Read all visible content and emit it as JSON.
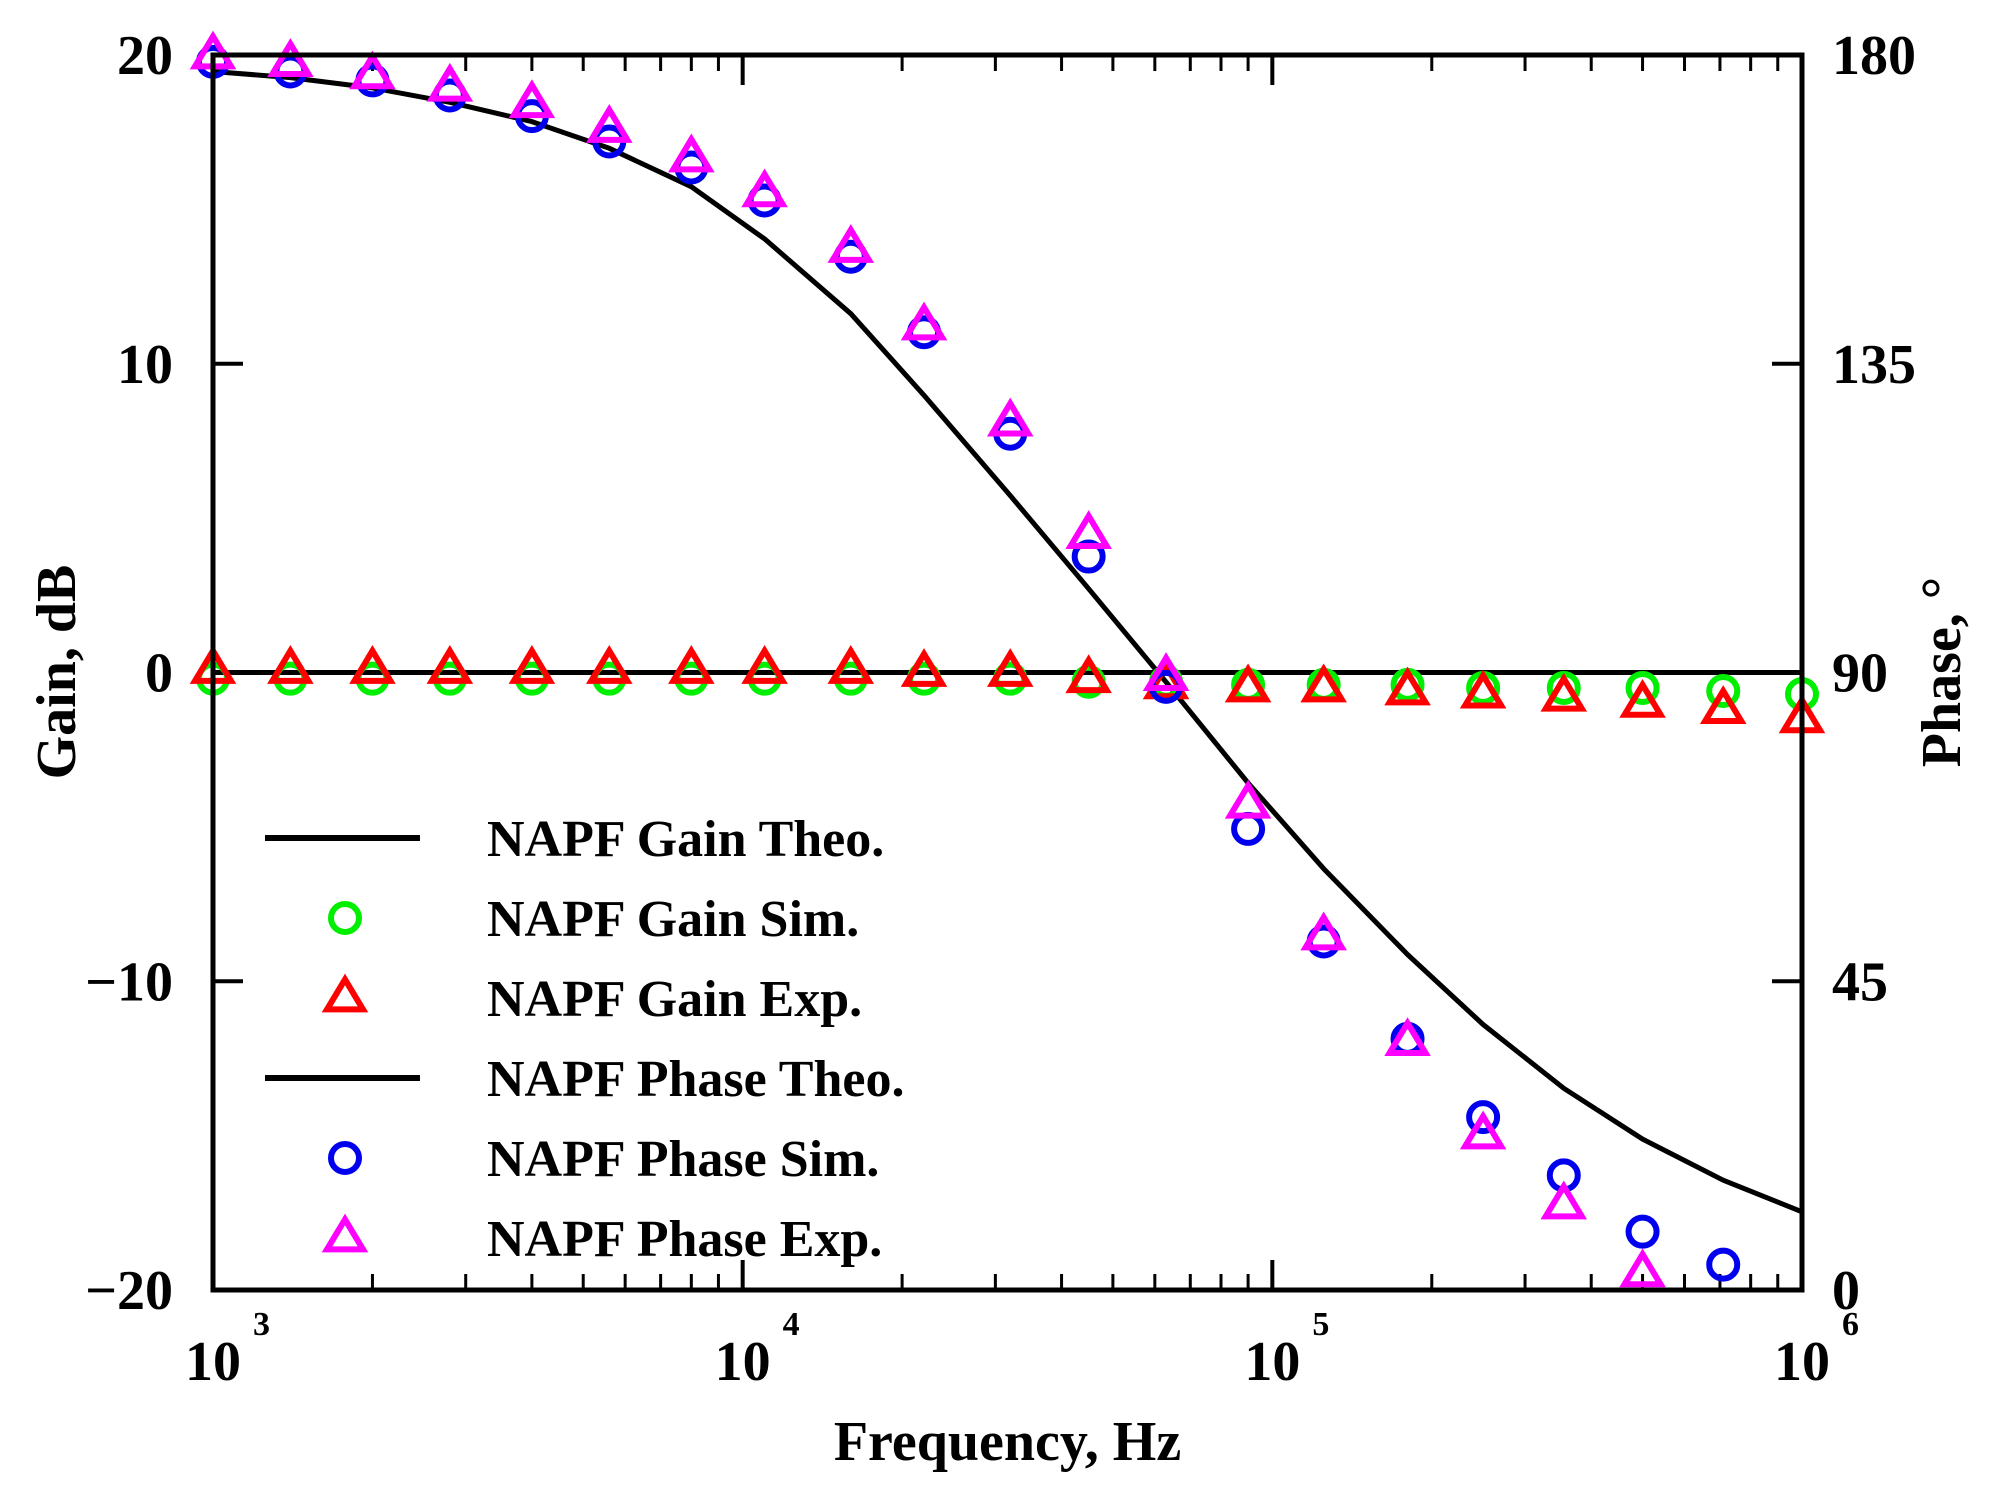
{
  "chart_data": {
    "type": "line",
    "xlabel": "Frequency, Hz",
    "ylabel_left": "Gain, dB",
    "ylabel_right": "Phase, °",
    "xscale": "log",
    "xlim": [
      1000,
      1000000
    ],
    "ylim_left": [
      -20,
      20
    ],
    "ylim_right": [
      0,
      180
    ],
    "x_ticks": [
      {
        "base": "10",
        "exp": "3",
        "value": 1000
      },
      {
        "base": "10",
        "exp": "4",
        "value": 10000
      },
      {
        "base": "10",
        "exp": "5",
        "value": 100000
      },
      {
        "base": "10",
        "exp": "6",
        "value": 1000000
      }
    ],
    "y_ticks_left": [
      {
        "label": "20",
        "value": 20
      },
      {
        "label": "10",
        "value": 10
      },
      {
        "label": "0",
        "value": 0
      },
      {
        "label": "−10",
        "value": -10
      },
      {
        "label": "−20",
        "value": -20
      }
    ],
    "y_ticks_right": [
      {
        "label": "180",
        "value": 180
      },
      {
        "label": "135",
        "value": 135
      },
      {
        "label": "90",
        "value": 90
      },
      {
        "label": "45",
        "value": 45
      },
      {
        "label": "0",
        "value": 0
      }
    ],
    "series": [
      {
        "name": "NAPF Gain Theo.",
        "axis": "left",
        "style": "line",
        "color": "#000000",
        "x": [
          1000,
          10000,
          100000,
          1000000
        ],
        "y": [
          0,
          0,
          0,
          0
        ]
      },
      {
        "name": "NAPF Gain Sim.",
        "axis": "left",
        "style": "circle",
        "color": "#00ee00",
        "x": [
          1000,
          1400,
          2000,
          2800,
          4000,
          5600,
          8000,
          11000,
          16000,
          22000,
          32000,
          45000,
          63000,
          90000,
          125000,
          180000,
          250000,
          355000,
          500000,
          710000,
          1000000
        ],
        "y": [
          -0.2,
          -0.2,
          -0.2,
          -0.2,
          -0.2,
          -0.2,
          -0.2,
          -0.2,
          -0.2,
          -0.2,
          -0.2,
          -0.3,
          -0.3,
          -0.4,
          -0.4,
          -0.4,
          -0.5,
          -0.5,
          -0.5,
          -0.6,
          -0.7
        ]
      },
      {
        "name": "NAPF Gain Exp.",
        "axis": "left",
        "style": "triangle",
        "color": "#ff0000",
        "x": [
          1000,
          1400,
          2000,
          2800,
          4000,
          5600,
          8000,
          11000,
          16000,
          22000,
          32000,
          45000,
          63000,
          90000,
          125000,
          180000,
          250000,
          355000,
          500000,
          710000,
          1000000
        ],
        "y": [
          0.1,
          0.1,
          0.1,
          0.1,
          0.1,
          0.1,
          0.1,
          0.1,
          0.1,
          0,
          0,
          -0.2,
          -0.4,
          -0.5,
          -0.5,
          -0.6,
          -0.7,
          -0.8,
          -1.0,
          -1.2,
          -1.5
        ]
      },
      {
        "name": "NAPF Phase Theo.",
        "axis": "right",
        "style": "line",
        "color": "#000000",
        "x": [
          1000,
          1400,
          2000,
          2800,
          4000,
          5600,
          8000,
          11000,
          16000,
          22000,
          32000,
          45000,
          63000,
          90000,
          125000,
          180000,
          250000,
          355000,
          500000,
          710000,
          1000000
        ],
        "y": [
          177.6,
          176.7,
          175.2,
          173.1,
          170.3,
          166.4,
          160.8,
          153.2,
          142.3,
          130.4,
          115.8,
          102.2,
          88.6,
          73.9,
          61.4,
          48.9,
          38.7,
          29.4,
          22.0,
          16.0,
          11.4
        ]
      },
      {
        "name": "NAPF Phase Sim.",
        "axis": "right",
        "style": "circle",
        "color": "#0000ee",
        "x": [
          1000,
          1400,
          2000,
          2800,
          4000,
          5600,
          8000,
          11000,
          16000,
          22000,
          32000,
          45000,
          63000,
          90000,
          125000,
          180000,
          250000,
          355000,
          500000,
          710000
        ],
        "y": [
          179.0,
          177.6,
          176.3,
          174.1,
          171.1,
          167.4,
          163.6,
          158.8,
          150.6,
          139.6,
          124.8,
          106.9,
          87.9,
          67.2,
          50.8,
          36.6,
          25.2,
          16.7,
          8.5,
          3.7
        ]
      },
      {
        "name": "NAPF Phase Exp.",
        "axis": "right",
        "style": "triangle",
        "color": "#ff00ff",
        "x": [
          1000,
          1400,
          2000,
          2800,
          4000,
          5600,
          8000,
          11000,
          16000,
          22000,
          32000,
          45000,
          63000,
          90000,
          125000,
          180000,
          250000,
          355000,
          500000
        ],
        "y": [
          180.0,
          178.9,
          177.1,
          175.3,
          172.9,
          169.3,
          165.0,
          159.9,
          151.8,
          140.5,
          126.5,
          110.1,
          89.4,
          70.8,
          51.6,
          36.2,
          22.6,
          12.4,
          2.5
        ]
      }
    ]
  }
}
